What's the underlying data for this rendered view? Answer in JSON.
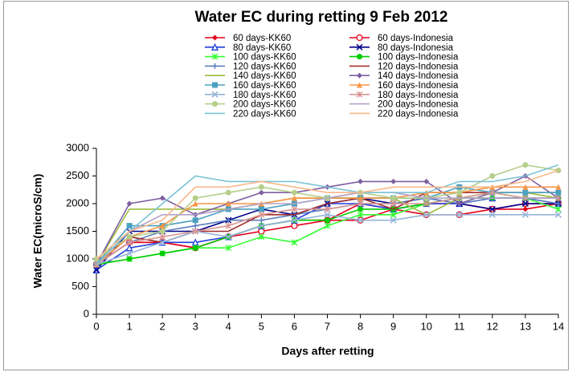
{
  "chart_data": {
    "type": "line",
    "title": "Water EC during retting 9 Feb 2012",
    "x_label": "Days after retting",
    "y_label": "Water EC(microS/cm)",
    "x": [
      0,
      1,
      2,
      3,
      4,
      5,
      6,
      7,
      8,
      9,
      10,
      11,
      12,
      13,
      14
    ],
    "xlim": [
      0,
      14
    ],
    "xticks": [
      0,
      1,
      2,
      3,
      4,
      5,
      6,
      7,
      8,
      9,
      10,
      11,
      12,
      13,
      14
    ],
    "ylim": [
      0,
      3000
    ],
    "yticks": [
      0,
      500,
      1000,
      1500,
      2000,
      2500,
      3000
    ],
    "series": [
      {
        "name": "60 days-KK60",
        "color": "#e3001b",
        "marker": "diamond",
        "values": [
          900,
          1300,
          1300,
          1200,
          1400,
          1600,
          1700,
          1700,
          2000,
          1900,
          2000,
          2000,
          1900,
          1900,
          2000
        ]
      },
      {
        "name": "60 days-Indonesia",
        "color": "#e3001b",
        "marker": "circle-open",
        "values": [
          900,
          1300,
          1300,
          1200,
          1400,
          1500,
          1600,
          1700,
          1700,
          1900,
          1800,
          1800,
          1900,
          2000,
          2000
        ]
      },
      {
        "name": "80 days-KK60",
        "color": "#1f3fdf",
        "marker": "triangle-open",
        "values": [
          800,
          1200,
          1300,
          1300,
          1400,
          1600,
          1700,
          2000,
          2000,
          1900,
          2000,
          2000,
          2100,
          2100,
          2000
        ]
      },
      {
        "name": "80 days-Indonesia",
        "color": "#00008b",
        "marker": "x",
        "values": [
          800,
          1500,
          1500,
          1500,
          1700,
          1900,
          1800,
          2000,
          2100,
          2000,
          2100,
          2000,
          1900,
          2000,
          2000
        ]
      },
      {
        "name": "100 days-KK60",
        "color": "#33ff33",
        "marker": "asterisk",
        "values": [
          900,
          1000,
          1100,
          1200,
          1200,
          1400,
          1300,
          1600,
          1800,
          1800,
          2000,
          2100,
          2200,
          2100,
          1900
        ]
      },
      {
        "name": "100 days-Indonesia",
        "color": "#00cc00",
        "marker": "circle",
        "values": [
          900,
          1000,
          1100,
          1200,
          1400,
          1600,
          1700,
          1700,
          1900,
          1900,
          2000,
          2100,
          2100,
          2100,
          2100
        ]
      },
      {
        "name": "120 days-KK60",
        "color": "#5b7fc0",
        "marker": "plus",
        "values": [
          900,
          1300,
          1500,
          1600,
          1700,
          1700,
          1800,
          1900,
          2000,
          2000,
          2100,
          2000,
          2100,
          2100,
          2000
        ]
      },
      {
        "name": "120 days-Indonesia",
        "color": "#a0302c",
        "marker": "none",
        "values": [
          900,
          1400,
          1300,
          1500,
          1500,
          1800,
          1800,
          2000,
          2100,
          1900,
          2200,
          2200,
          2200,
          2200,
          2200
        ]
      },
      {
        "name": "140 days-KK60",
        "color": "#9bbb3b",
        "marker": "none",
        "values": [
          900,
          1900,
          1900,
          1900,
          1900,
          2000,
          2100,
          2100,
          2100,
          2100,
          1800,
          2100,
          2200,
          2200,
          2100
        ]
      },
      {
        "name": "140 days-Indonesia",
        "color": "#7f5fa0",
        "marker": "diamond",
        "values": [
          900,
          2000,
          2100,
          1800,
          2000,
          2200,
          2200,
          2300,
          2400,
          2400,
          2400,
          2000,
          2200,
          2500,
          2100
        ]
      },
      {
        "name": "160 days-KK60",
        "color": "#4aa0c0",
        "marker": "square",
        "values": [
          900,
          1600,
          1600,
          1700,
          1900,
          1900,
          2000,
          2100,
          2100,
          2100,
          2100,
          2300,
          2200,
          2200,
          2200
        ]
      },
      {
        "name": "160 days-Indonesia",
        "color": "#f79646",
        "marker": "triangle",
        "values": [
          900,
          1400,
          1600,
          2000,
          2000,
          2000,
          2100,
          2100,
          2100,
          2100,
          2200,
          2200,
          2300,
          2300,
          2300
        ]
      },
      {
        "name": "180 days-KK60",
        "color": "#95b3d7",
        "marker": "x",
        "values": [
          900,
          1100,
          1300,
          1500,
          1400,
          1600,
          1700,
          1800,
          1700,
          1700,
          1800,
          1800,
          1800,
          1800,
          1800
        ]
      },
      {
        "name": "180 days-Indonesia",
        "color": "#d99694",
        "marker": "asterisk",
        "values": [
          900,
          1300,
          1400,
          1500,
          1600,
          1800,
          1900,
          1900,
          2000,
          2000,
          2000,
          2100,
          2200,
          2100,
          2100
        ]
      },
      {
        "name": "200 days-KK60",
        "color": "#b5cf8a",
        "marker": "circle",
        "values": [
          1000,
          1400,
          1500,
          2100,
          2200,
          2300,
          2200,
          2100,
          2200,
          2100,
          2100,
          2200,
          2500,
          2700,
          2600
        ]
      },
      {
        "name": "200 days-Indonesia",
        "color": "#b3a2c7",
        "marker": "none",
        "values": [
          900,
          1500,
          1800,
          1800,
          1900,
          2000,
          2000,
          2100,
          2200,
          2200,
          2100,
          2100,
          2100,
          2100,
          2100
        ]
      },
      {
        "name": "220 days-KK60",
        "color": "#7cc3d6",
        "marker": "none",
        "values": [
          900,
          1500,
          2000,
          2500,
          2400,
          2400,
          2400,
          2300,
          2200,
          2200,
          2200,
          2400,
          2400,
          2500,
          2700
        ]
      },
      {
        "name": "220 days-Indonesia",
        "color": "#fab889",
        "marker": "none",
        "values": [
          1000,
          1500,
          1700,
          2300,
          2300,
          2400,
          2300,
          2200,
          2200,
          2300,
          2300,
          2300,
          2300,
          2400,
          2600
        ]
      }
    ]
  }
}
